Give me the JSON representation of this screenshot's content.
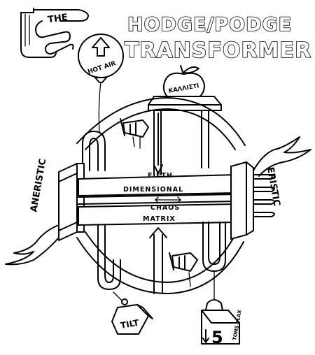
{
  "title": {
    "line1": "HODGE/PODGE",
    "line2": "TRANSFORMER",
    "badge": "THE"
  },
  "balloon": {
    "label": "HOT AIR"
  },
  "apple": {
    "label": "ΚΑΛΛΙΣΤΙ"
  },
  "core": {
    "line1": "FIFTH",
    "line2": "DIMENSIONAL",
    "line3": "CHAOS",
    "line4": "MATRIX"
  },
  "sides": {
    "left": "ANERISTIC",
    "right": "ERISTIC"
  },
  "weights": {
    "tilt": "TILT",
    "ton_number": "5",
    "ton_label": "TONS FLAX"
  }
}
